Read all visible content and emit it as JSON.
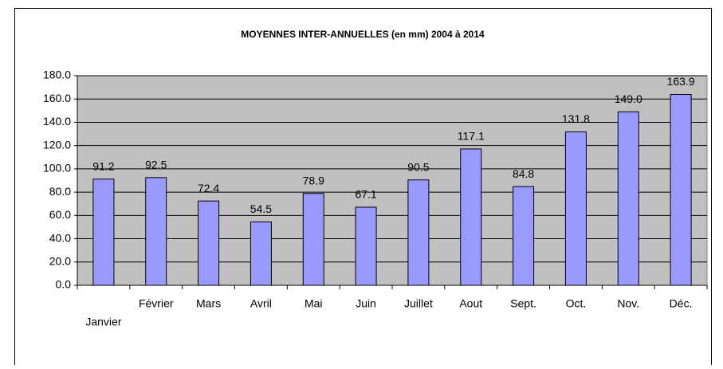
{
  "chart_data": {
    "type": "bar",
    "title": "MOYENNES INTER-ANNUELLES (en mm) 2004 à 2014",
    "categories": [
      "Janvier",
      "Février",
      "Mars",
      "Avril",
      "Mai",
      "Juin",
      "Juillet",
      "Aout",
      "Sept.",
      "Oct.",
      "Nov.",
      "Déc."
    ],
    "values": [
      91.2,
      92.5,
      72.4,
      54.5,
      78.9,
      67.1,
      90.5,
      117.1,
      84.8,
      131.8,
      149.0,
      163.9
    ],
    "value_labels": [
      "91.2",
      "92.5",
      "72.4",
      "54.5",
      "78.9",
      "67.1",
      "90.5",
      "117.1",
      "84.8",
      "131.8",
      "149.0",
      "163.9"
    ],
    "color": "#9999ff",
    "plot_background": "#c0c0c0",
    "grid": true,
    "ylim": [
      0,
      180
    ],
    "yticks": [
      {
        "value": 0,
        "label": "0.0"
      },
      {
        "value": 20,
        "label": "20.0"
      },
      {
        "value": 40,
        "label": "40.0"
      },
      {
        "value": 60,
        "label": "60.0"
      },
      {
        "value": 80,
        "label": "80.0"
      },
      {
        "value": 100,
        "label": "100.0"
      },
      {
        "value": 120,
        "label": "120.0"
      },
      {
        "value": 140,
        "label": "140.0"
      },
      {
        "value": 160,
        "label": "160.0"
      },
      {
        "value": 180,
        "label": "180.0"
      }
    ]
  }
}
